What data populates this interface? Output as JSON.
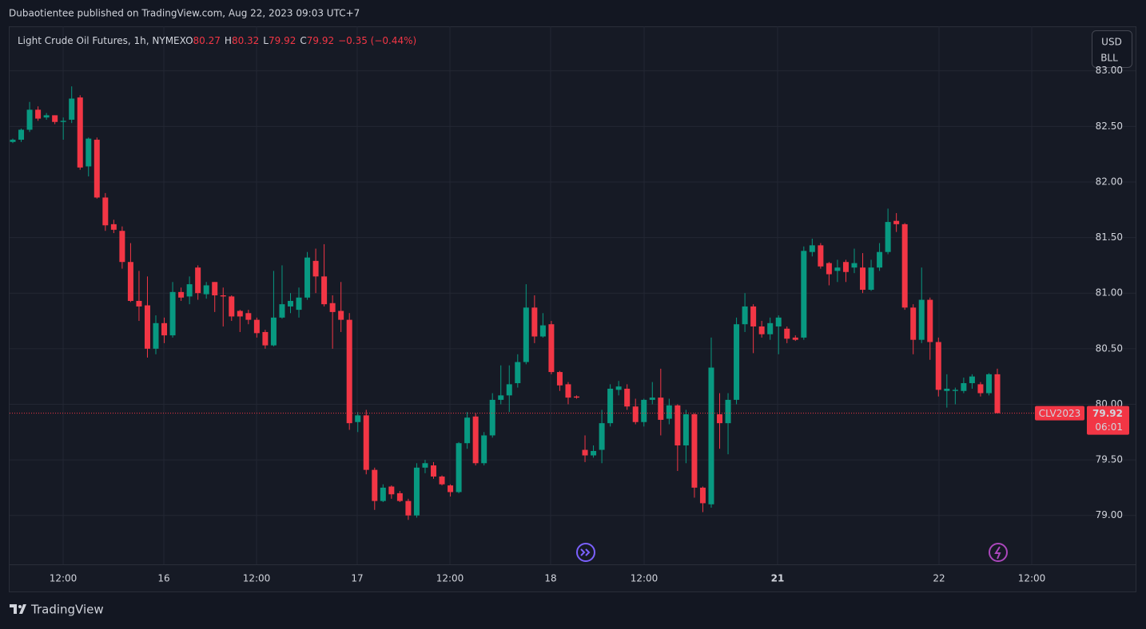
{
  "header": {
    "publisher": "Dubaotientee published on TradingView.com, Aug 22, 2023 09:03 UTC+7"
  },
  "legend": {
    "symbol": "Light Crude Oil Futures, 1h, NYMEX",
    "o_label": "O",
    "open": 80.27,
    "h_label": "H",
    "high": 80.32,
    "l_label": "L",
    "low": 79.92,
    "c_label": "C",
    "close": 79.92,
    "change": "−0.35 (−0.44%)"
  },
  "currency": {
    "unit1": "USD",
    "unit2": "BLL"
  },
  "price_tag": {
    "symbol": "CLV2023",
    "price": 79.92,
    "countdown": "06:01"
  },
  "footer": {
    "brand": "TradingView"
  },
  "chart_data": {
    "type": "candlestick",
    "up_color": "#089981",
    "down_color": "#f23645",
    "grid": true,
    "ylim": [
      78.56,
      83.4
    ],
    "yticks": [
      {
        "value": 79,
        "label": "79.00"
      },
      {
        "value": 79.5,
        "label": "79.50"
      },
      {
        "value": 80,
        "label": "80.00"
      },
      {
        "value": 80.5,
        "label": "80.50"
      },
      {
        "value": 81,
        "label": "81.00"
      },
      {
        "value": 81.5,
        "label": "81.50"
      },
      {
        "value": 82,
        "label": "82.00"
      },
      {
        "value": 82.5,
        "label": "82.50"
      },
      {
        "value": 83,
        "label": "83.00"
      }
    ],
    "xtick_labels": [
      "12:00",
      "16",
      "12:00",
      "17",
      "12:00",
      "18",
      "12:00",
      "21",
      "22",
      "12:00"
    ],
    "open": [
      82.36,
      82.38,
      82.47,
      82.65,
      82.58,
      82.6,
      82.54,
      82.56,
      82.76,
      82.14,
      82.38,
      81.86,
      81.62,
      81.56,
      81.28,
      80.93,
      80.89,
      80.5,
      80.73,
      80.62,
      81.01,
      80.97,
      81.23,
      80.99,
      81.1,
      80.98,
      80.97,
      80.84,
      80.82,
      80.76,
      80.65,
      80.53,
      80.78,
      80.88,
      80.85,
      80.96,
      81.29,
      81.15,
      80.91,
      80.84,
      80.76,
      79.84,
      79.9,
      79.41,
      79.13,
      79.26,
      79.2,
      79.13,
      79.0,
      79.43,
      79.45,
      79.35,
      79.27,
      79.21,
      79.65,
      79.89,
      79.47,
      79.72,
      80.04,
      80.08,
      80.19,
      80.38,
      80.87,
      80.61,
      80.72,
      80.29,
      80.18,
      80.07,
      79.59,
      79.54,
      79.59,
      79.83,
      80.13,
      80.14,
      79.98,
      79.84,
      80.04,
      80.06,
      79.87,
      79.99,
      79.63,
      79.91,
      79.25,
      79.1,
      79.91,
      79.83,
      80.04,
      80.72,
      80.88,
      80.7,
      80.63,
      80.7,
      80.68,
      80.6,
      80.6,
      81.37,
      81.43,
      81.27,
      81.2,
      81.28,
      81.23,
      81.23,
      81.03,
      81.23,
      81.37,
      81.65,
      81.62,
      80.87,
      80.58,
      80.94,
      80.56,
      80.12,
      80.12,
      80.12,
      80.19,
      80.18,
      80.1,
      80.27
    ],
    "high": [
      82.39,
      82.48,
      82.72,
      82.68,
      82.62,
      82.6,
      82.58,
      82.86,
      82.78,
      82.4,
      82.4,
      81.9,
      81.66,
      81.6,
      81.45,
      81.2,
      81.15,
      80.8,
      80.78,
      81.1,
      81.05,
      81.15,
      81.25,
      81.1,
      81.1,
      81.05,
      80.98,
      80.85,
      80.85,
      80.78,
      80.67,
      81.2,
      81.25,
      81.0,
      81.05,
      81.37,
      81.4,
      81.44,
      80.98,
      81.1,
      80.82,
      79.93,
      79.95,
      79.43,
      79.28,
      79.27,
      79.22,
      79.15,
      79.47,
      79.5,
      79.48,
      79.36,
      79.28,
      79.66,
      79.93,
      79.92,
      79.75,
      80.1,
      80.35,
      80.35,
      80.45,
      81.08,
      80.98,
      80.82,
      80.75,
      80.3,
      80.2,
      80.08,
      79.72,
      79.63,
      79.95,
      80.18,
      80.21,
      80.18,
      80.05,
      80.05,
      80.2,
      80.32,
      80.05,
      80.0,
      79.95,
      79.92,
      79.26,
      80.6,
      80.1,
      80.1,
      80.78,
      81.0,
      80.9,
      80.75,
      80.78,
      80.8,
      80.7,
      80.62,
      81.42,
      81.49,
      81.45,
      81.28,
      81.3,
      81.3,
      81.4,
      81.36,
      81.3,
      81.45,
      81.76,
      81.72,
      81.63,
      80.9,
      81.23,
      80.96,
      80.6,
      80.27,
      80.15,
      80.24,
      80.27,
      80.2,
      80.28,
      80.32
    ],
    "low": [
      82.35,
      82.36,
      82.45,
      82.55,
      82.56,
      82.52,
      82.38,
      82.53,
      82.11,
      82.05,
      81.85,
      81.56,
      81.54,
      81.22,
      80.92,
      80.75,
      80.42,
      80.45,
      80.55,
      80.6,
      80.93,
      80.9,
      80.94,
      80.95,
      80.83,
      80.7,
      80.75,
      80.65,
      80.72,
      80.6,
      80.5,
      80.52,
      80.77,
      80.82,
      80.78,
      80.94,
      81.0,
      80.88,
      80.5,
      80.65,
      79.77,
      79.75,
      79.37,
      79.05,
      79.12,
      79.15,
      79.12,
      78.96,
      78.98,
      79.38,
      79.33,
      79.27,
      79.17,
      79.2,
      79.6,
      79.45,
      79.45,
      79.7,
      80.0,
      79.93,
      80.15,
      80.36,
      80.55,
      80.6,
      80.27,
      80.12,
      80.0,
      80.05,
      79.48,
      79.52,
      79.47,
      79.8,
      80.08,
      79.95,
      79.82,
      79.8,
      80.0,
      79.72,
      79.82,
      79.4,
      79.47,
      79.16,
      79.03,
      79.07,
      79.6,
      79.55,
      80.0,
      80.65,
      80.46,
      80.6,
      80.58,
      80.45,
      80.55,
      80.57,
      80.58,
      81.33,
      81.22,
      81.07,
      81.1,
      81.1,
      81.18,
      81.0,
      81.02,
      81.2,
      81.35,
      81.55,
      80.85,
      80.45,
      80.55,
      80.4,
      80.07,
      79.97,
      80.0,
      80.1,
      80.14,
      80.07,
      80.08,
      79.92
    ],
    "close": [
      82.38,
      82.47,
      82.65,
      82.57,
      82.6,
      82.54,
      82.55,
      82.75,
      82.13,
      82.39,
      81.86,
      81.61,
      81.57,
      81.28,
      80.93,
      80.88,
      80.5,
      80.73,
      80.62,
      81.01,
      80.96,
      81.08,
      81.0,
      81.07,
      80.98,
      80.97,
      80.79,
      80.79,
      80.76,
      80.64,
      80.53,
      80.78,
      80.9,
      80.93,
      80.96,
      81.32,
      81.15,
      80.9,
      80.83,
      80.76,
      79.83,
      79.9,
      79.41,
      79.13,
      79.25,
      79.19,
      79.13,
      79.0,
      79.43,
      79.47,
      79.35,
      79.28,
      79.21,
      79.65,
      79.88,
      79.47,
      79.72,
      80.04,
      80.08,
      80.18,
      80.38,
      80.87,
      80.61,
      80.71,
      80.29,
      80.17,
      80.06,
      80.06,
      79.54,
      79.58,
      79.83,
      80.14,
      80.16,
      79.98,
      79.84,
      80.04,
      80.06,
      79.86,
      79.99,
      79.63,
      79.91,
      79.25,
      79.11,
      80.33,
      79.83,
      80.04,
      80.72,
      80.88,
      80.7,
      80.63,
      80.73,
      80.78,
      80.59,
      80.58,
      81.38,
      81.43,
      81.24,
      81.17,
      81.23,
      81.19,
      81.27,
      81.03,
      81.23,
      81.37,
      81.64,
      81.62,
      80.87,
      80.58,
      80.94,
      80.56,
      80.13,
      80.14,
      80.13,
      80.19,
      80.25,
      80.1,
      80.27,
      79.92
    ]
  }
}
